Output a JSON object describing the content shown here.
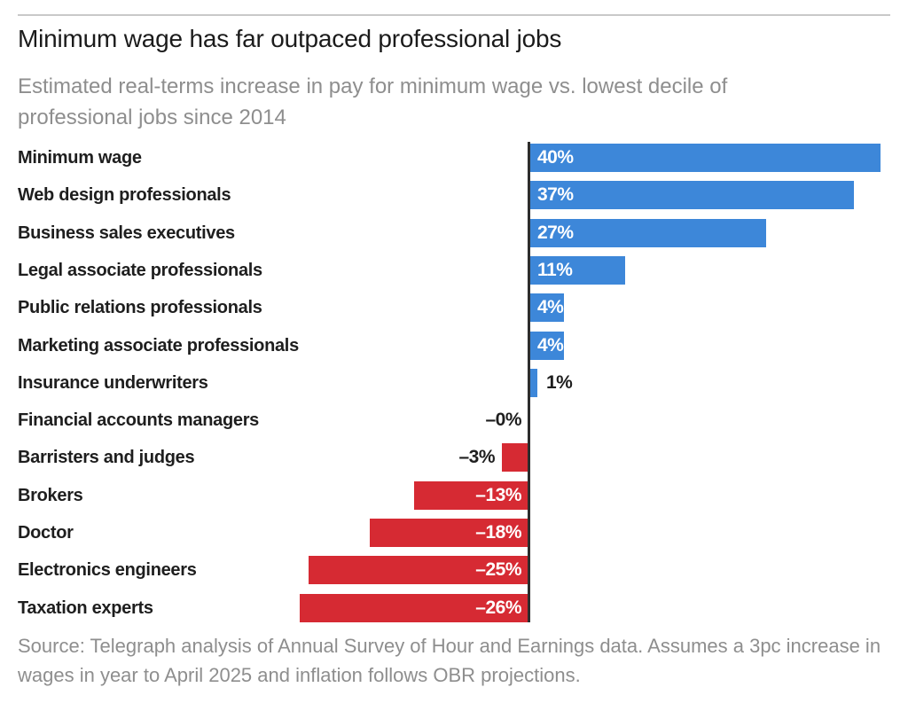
{
  "chart_data": {
    "type": "bar",
    "orientation": "horizontal",
    "title": "Minimum wage has far outpaced professional jobs",
    "subtitle": "Estimated real-terms increase in pay for minimum wage vs. lowest decile of professional jobs since 2014",
    "source": "Source: Telegraph analysis of Annual Survey of Hour and Earnings data. Assumes a 3pc increase in wages in year to April 2025 and inflation follows OBR projections.",
    "unit": "%",
    "categories": [
      "Minimum wage",
      "Web design professionals",
      "Business sales executives",
      "Legal associate professionals",
      "Public relations professionals",
      "Marketing associate professionals",
      "Insurance underwriters",
      "Financial accounts managers",
      "Barristers and judges",
      "Brokers",
      "Doctor",
      "Electronics engineers",
      "Taxation experts"
    ],
    "values": [
      40,
      37,
      27,
      11,
      4,
      4,
      1,
      0,
      -3,
      -13,
      -18,
      -25,
      -26
    ],
    "value_labels": [
      "40%",
      "37%",
      "27%",
      "11%",
      "4%",
      "4%",
      "1%",
      "–0%",
      "–3%",
      "–13%",
      "–18%",
      "–25%",
      "–26%"
    ],
    "xlim": [
      -26,
      40
    ],
    "grid": "off",
    "legend": "none",
    "colors": {
      "positive_bar": "#3d87d9",
      "negative_bar": "#d62a33",
      "axis_line": "#2d2d2d",
      "label_inside": "#ffffff",
      "label_outside": "#1e1e1e",
      "title_text": "#1b1b1b",
      "muted_text": "#8e8e8e"
    }
  }
}
